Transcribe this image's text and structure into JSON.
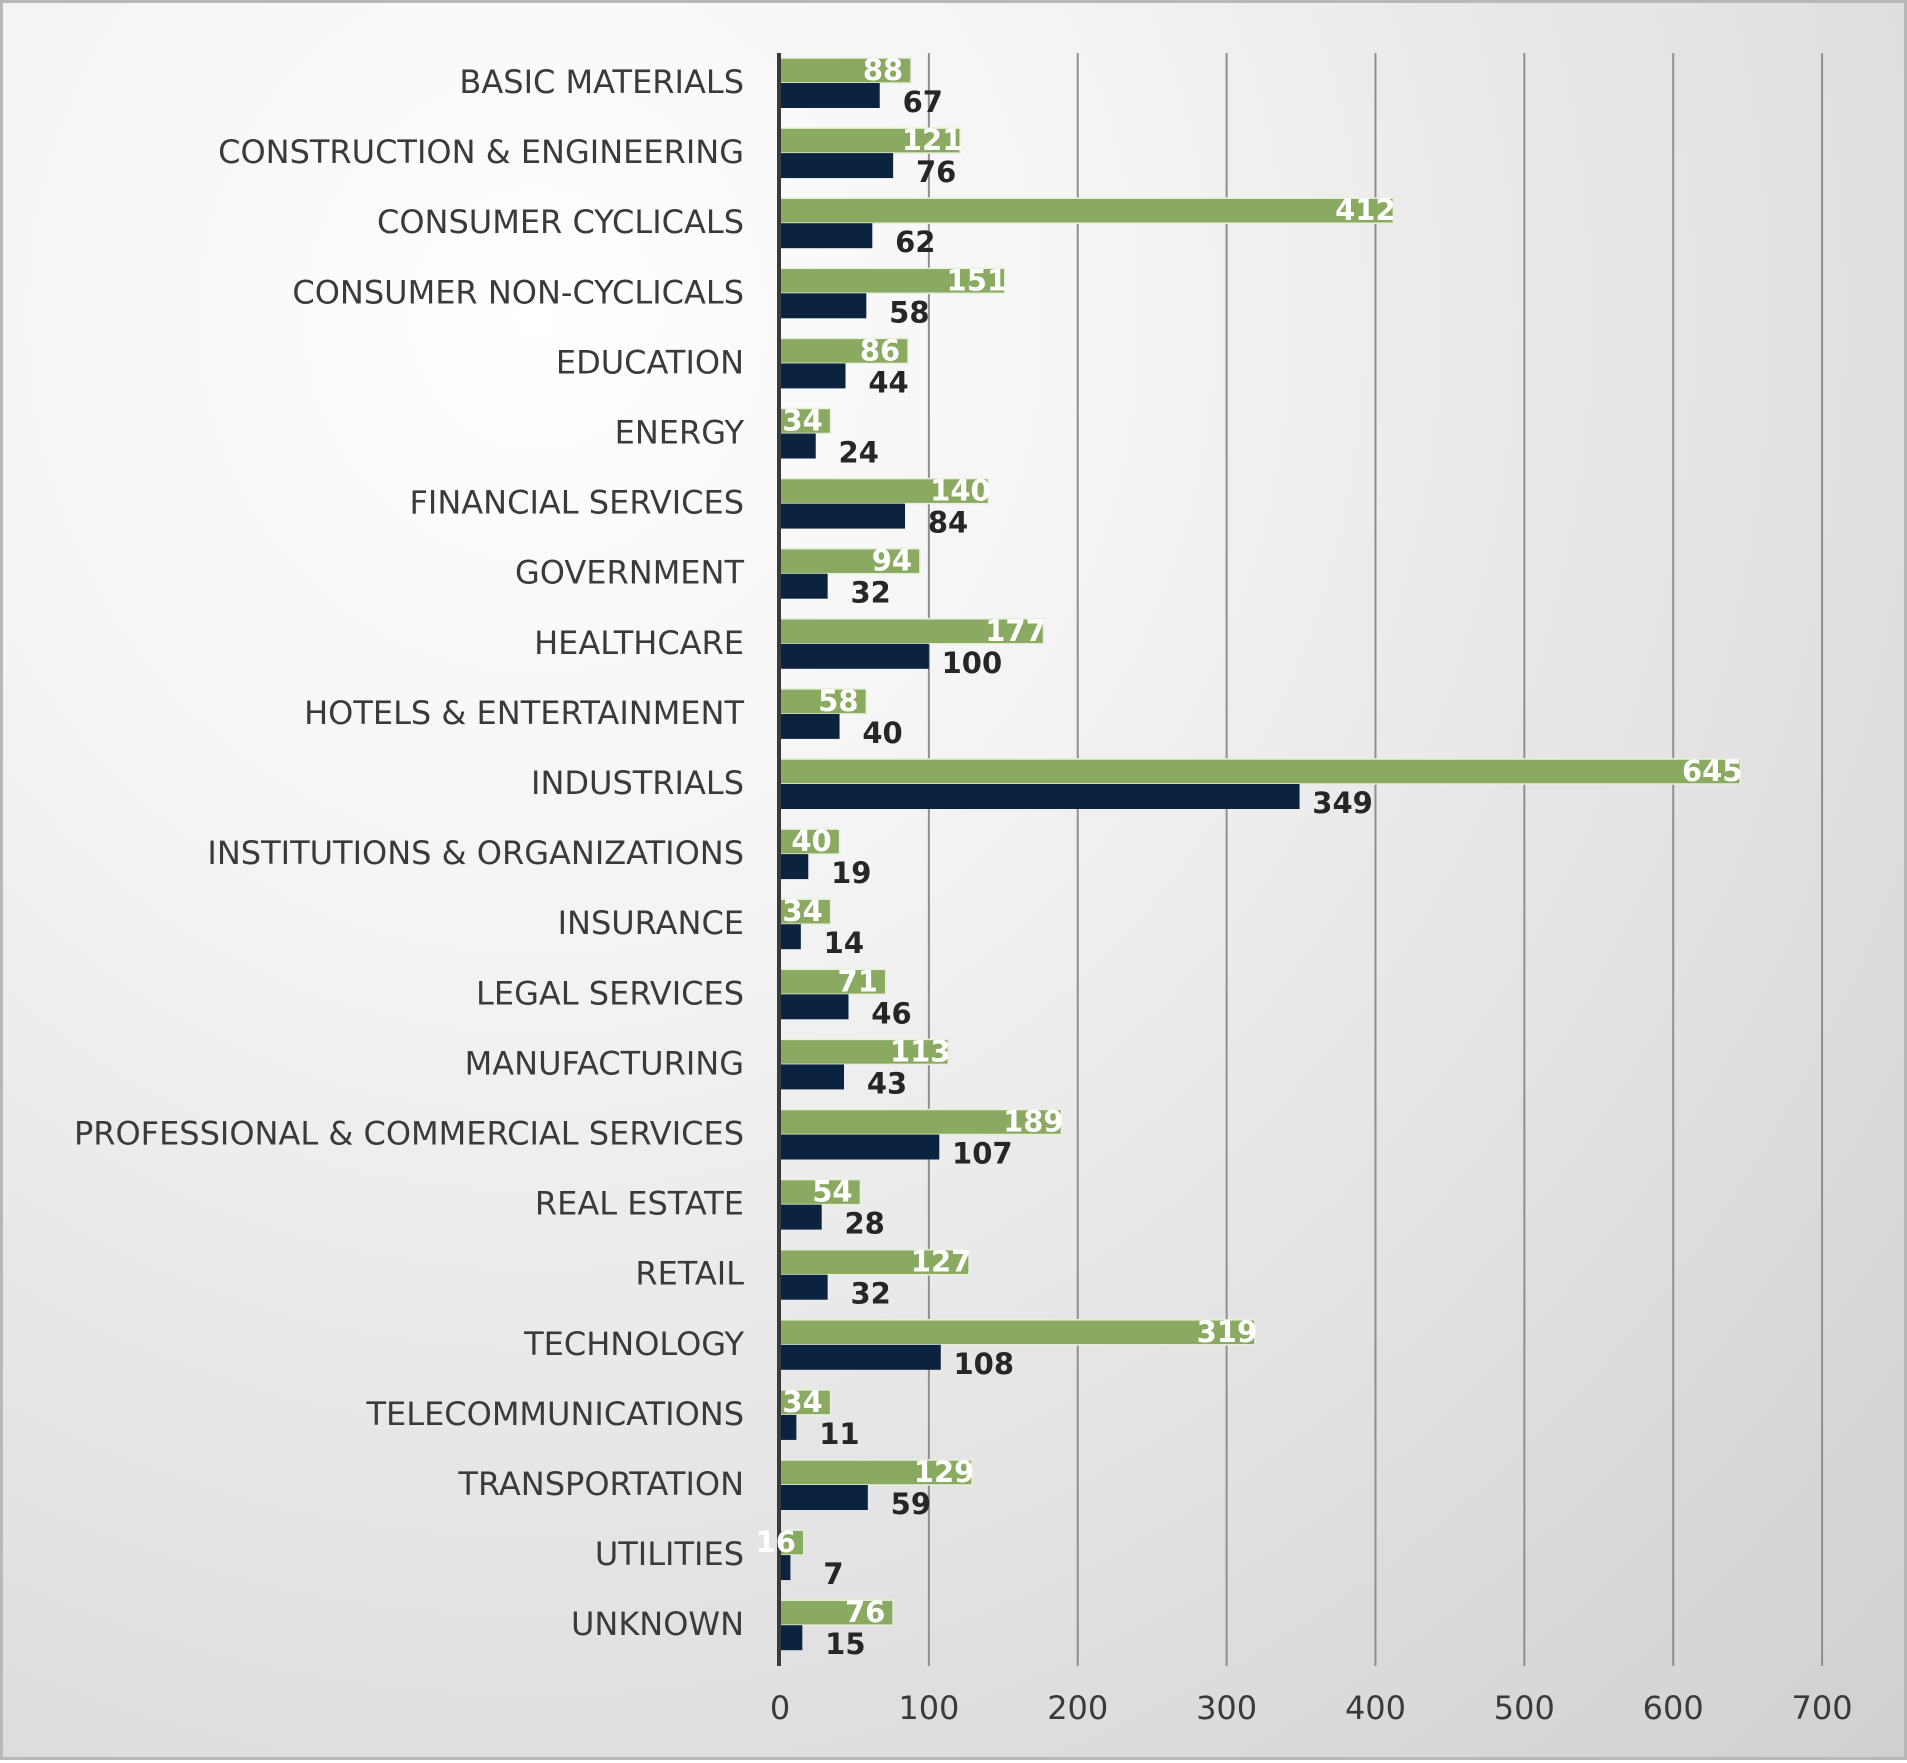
{
  "chart_data": {
    "type": "bar",
    "orientation": "horizontal",
    "categories": [
      "BASIC MATERIALS",
      "CONSTRUCTION & ENGINEERING",
      "CONSUMER CYCLICALS",
      "CONSUMER NON-CYCLICALS",
      "EDUCATION",
      "ENERGY",
      "FINANCIAL SERVICES",
      "GOVERNMENT",
      "HEALTHCARE",
      "HOTELS & ENTERTAINMENT",
      "INDUSTRIALS",
      "INSTITUTIONS & ORGANIZATIONS",
      "INSURANCE",
      "LEGAL SERVICES",
      "MANUFACTURING",
      "PROFESSIONAL & COMMERCIAL SERVICES",
      "REAL ESTATE",
      "RETAIL",
      "TECHNOLOGY",
      "TELECOMMUNICATIONS",
      "TRANSPORTATION",
      "UTILITIES",
      "UNKNOWN"
    ],
    "series": [
      {
        "color": "#8aaa62",
        "values": [
          88,
          121,
          412,
          151,
          86,
          34,
          140,
          94,
          177,
          58,
          645,
          40,
          34,
          71,
          113,
          189,
          54,
          127,
          319,
          34,
          129,
          16,
          76
        ]
      },
      {
        "color": "#0c2340",
        "values": [
          67,
          76,
          62,
          58,
          44,
          24,
          84,
          32,
          100,
          40,
          349,
          19,
          14,
          46,
          43,
          107,
          28,
          32,
          108,
          11,
          59,
          7,
          15
        ]
      }
    ],
    "xticks": [
      "0",
      "100",
      "200",
      "300",
      "400",
      "500",
      "600",
      "700"
    ],
    "xlim": [
      0,
      700
    ],
    "title": "",
    "xlabel": "",
    "ylabel": "",
    "grid": "vertical",
    "legend": "none",
    "data_labels": true
  }
}
